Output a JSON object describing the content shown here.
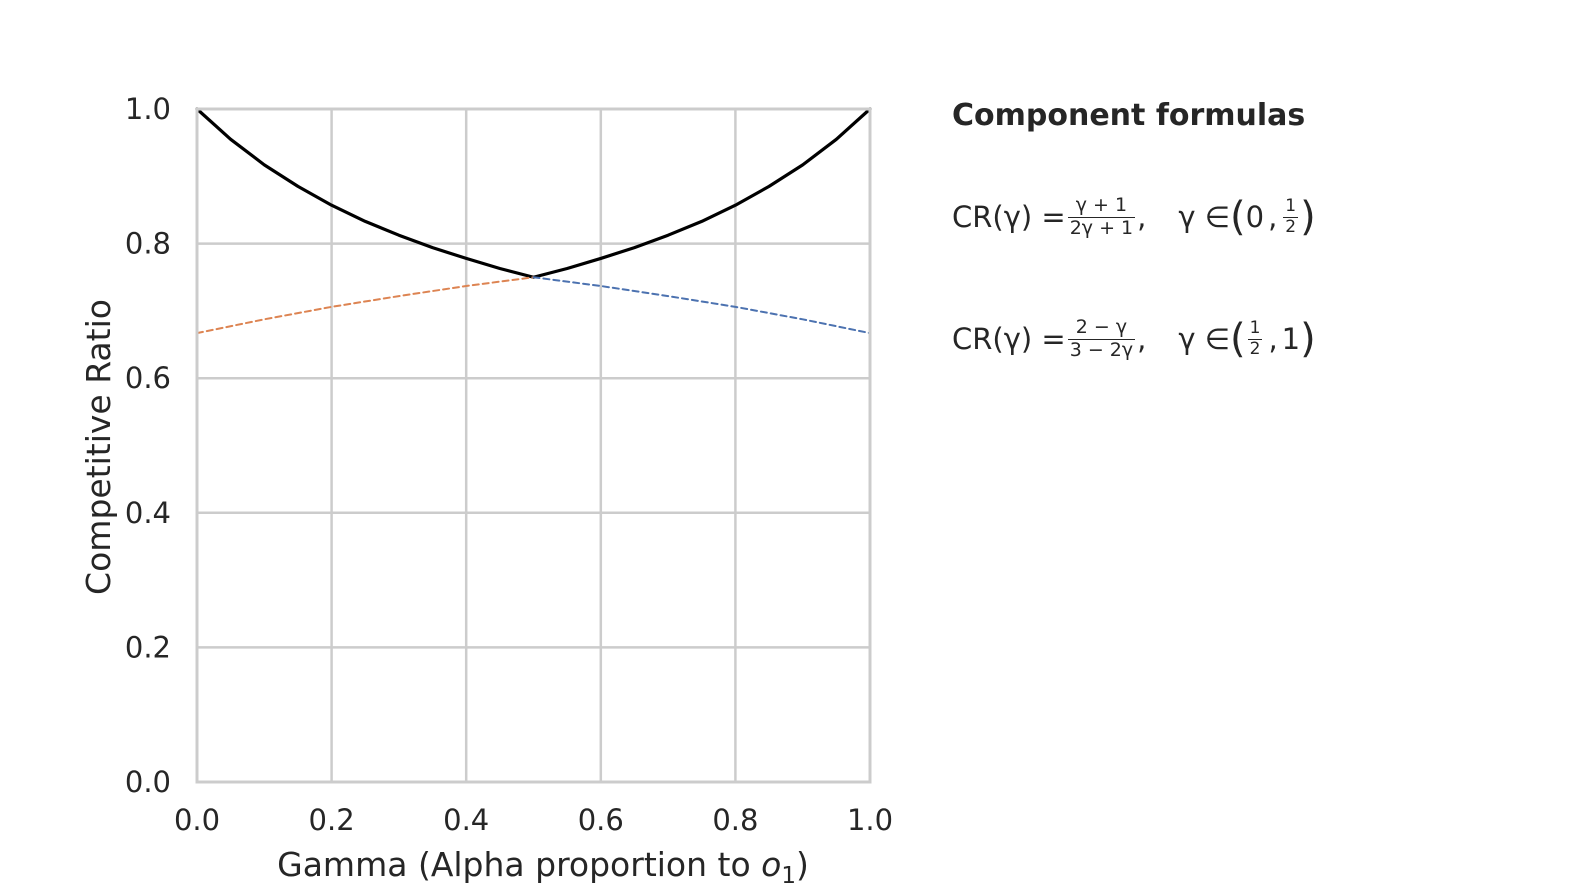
{
  "chart_data": {
    "type": "line",
    "title": "",
    "xlabel_prefix": "Gamma (Alpha proportion to ",
    "xlabel_var": "o",
    "xlabel_sub": "1",
    "xlabel_suffix": ")",
    "ylabel": "Competitive Ratio",
    "xlim": [
      0.0,
      1.0
    ],
    "ylim": [
      0.0,
      1.0
    ],
    "xticks": [
      "0.0",
      "0.2",
      "0.4",
      "0.6",
      "0.8",
      "1.0"
    ],
    "yticks": [
      "0.0",
      "0.2",
      "0.4",
      "0.6",
      "0.8",
      "1.0"
    ],
    "grid": true,
    "legend": "none",
    "series": [
      {
        "style": "solid",
        "color": "#000000",
        "x": [
          0.0,
          0.05,
          0.1,
          0.15,
          0.2,
          0.25,
          0.3,
          0.35,
          0.4,
          0.45,
          0.5,
          0.55,
          0.6,
          0.65,
          0.7,
          0.75,
          0.8,
          0.85,
          0.9,
          0.95,
          1.0
        ],
        "y": [
          1.0,
          0.955,
          0.917,
          0.885,
          0.857,
          0.833,
          0.8125,
          0.794,
          0.778,
          0.763,
          0.75,
          0.763,
          0.778,
          0.794,
          0.8125,
          0.833,
          0.857,
          0.885,
          0.917,
          0.955,
          1.0
        ]
      },
      {
        "style": "dashed",
        "color": "#dd8452",
        "x": [
          0.0,
          0.1,
          0.2,
          0.3,
          0.4,
          0.5
        ],
        "y": [
          0.667,
          0.6875,
          0.706,
          0.722,
          0.737,
          0.75
        ]
      },
      {
        "style": "dashed",
        "color": "#4c72b0",
        "x": [
          0.5,
          0.6,
          0.7,
          0.8,
          0.9,
          1.0
        ],
        "y": [
          0.75,
          0.737,
          0.722,
          0.706,
          0.6875,
          0.667
        ]
      }
    ]
  },
  "panel": {
    "title": "Component formulas",
    "formula1": {
      "lhs": "CR(γ) =",
      "num": "γ + 1",
      "den": "2γ + 1",
      "comma": ",",
      "var": "γ ∈",
      "open": "(",
      "a": "0",
      "sep": ",",
      "b_num": "1",
      "b_den": "2",
      "close": ")"
    },
    "formula2": {
      "lhs": "CR(γ) =",
      "num": "2 − γ",
      "den": "3 − 2γ",
      "comma": ",",
      "var": "γ ∈",
      "open": "(",
      "a_num": "1",
      "a_den": "2",
      "sep": ",",
      "b": "1",
      "close": ")"
    }
  }
}
